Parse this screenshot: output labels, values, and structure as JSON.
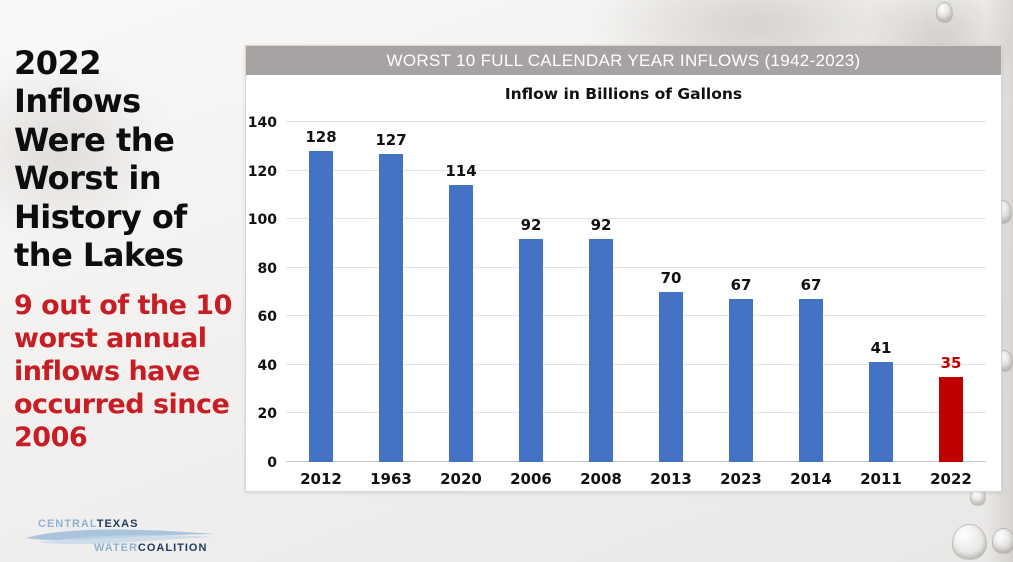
{
  "slide": {
    "headline": "2022\nInflows\nWere the\nWorst in\nHistory of\nthe Lakes",
    "subheadline": "9 out of the 10\nworst annual\ninflows have\noccurred since\n2006",
    "headline_color": "#0d0d0d",
    "subheadline_color": "#c71e26"
  },
  "chart_panel": {
    "header": "WORST 10 FULL CALENDAR YEAR INFLOWS (1942-2023)",
    "header_bg": "#a6a3a2",
    "header_text_color": "#ffffff"
  },
  "chart_data": {
    "type": "bar",
    "title": "Inflow in Billions of Gallons",
    "categories": [
      "2012",
      "1963",
      "2020",
      "2006",
      "2008",
      "2013",
      "2023",
      "2014",
      "2011",
      "2022"
    ],
    "values": [
      128,
      127,
      114,
      92,
      92,
      70,
      67,
      67,
      41,
      35
    ],
    "bar_colors": [
      "#4472c4",
      "#4472c4",
      "#4472c4",
      "#4472c4",
      "#4472c4",
      "#4472c4",
      "#4472c4",
      "#4472c4",
      "#4472c4",
      "#c00000"
    ],
    "value_label_colors": [
      "#111111",
      "#111111",
      "#111111",
      "#111111",
      "#111111",
      "#111111",
      "#111111",
      "#111111",
      "#111111",
      "#c00000"
    ],
    "highlight_category": "2022",
    "highlight_color": "#c00000",
    "default_bar_color": "#4472c4",
    "xlabel": "",
    "ylabel": "",
    "ylim": [
      0,
      140
    ],
    "yticks": [
      0,
      20,
      40,
      60,
      80,
      100,
      120,
      140
    ],
    "grid": true,
    "data_labels": true,
    "legend": false
  },
  "logo": {
    "word_central": "CENTRAL",
    "word_texas": "TEXAS",
    "word_water": "WATER",
    "word_coalition": "COALITION",
    "light_color": "#8fb3d3",
    "dark_color": "#1f3c61"
  }
}
